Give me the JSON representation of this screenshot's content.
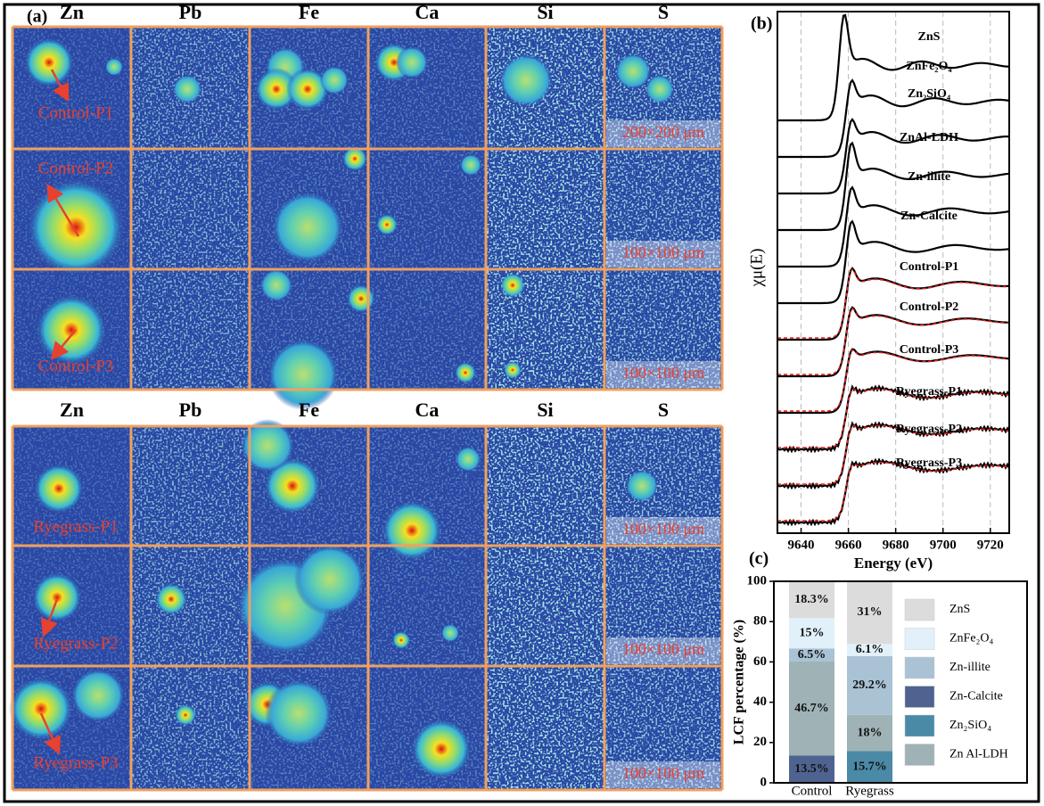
{
  "panel_a": {
    "label": "(a)",
    "groups": [
      {
        "elements": [
          "Zn",
          "Pb",
          "Fe",
          "Ca",
          "Si",
          "S"
        ],
        "rows": [
          {
            "sample": "Control-P1",
            "scale": "200×200 μm"
          },
          {
            "sample": "Control-P2",
            "scale": "100×100 μm"
          },
          {
            "sample": "Control-P3",
            "scale": "100×100 μm"
          }
        ]
      },
      {
        "elements": [
          "Zn",
          "Pb",
          "Fe",
          "Ca",
          "Si",
          "S"
        ],
        "rows": [
          {
            "sample": "Ryegrass-P1",
            "scale": "100×100 μm"
          },
          {
            "sample": "Ryegrass-P2",
            "scale": "100×100 μm"
          },
          {
            "sample": "Ryegrass-P3",
            "scale": "100×100 μm"
          }
        ]
      }
    ]
  },
  "panel_b": {
    "label": "(b)",
    "xlabel": "Energy (eV)",
    "ylabel": "χμ(E)",
    "xlim": [
      9630,
      9728
    ],
    "xticks": [
      9640,
      9660,
      9680,
      9700,
      9720
    ],
    "spectra": [
      "ZnS",
      "ZnFe₂O₄",
      "Zn₂SiO₄",
      "ZnAl-LDH",
      "Zn-illite",
      "Zn-Calcite",
      "Control-P1",
      "Control-P2",
      "Control-P3",
      "Ryegrass-P1",
      "Ryegrass-P2",
      "Ryegrass-P3"
    ]
  },
  "chart_data": {
    "type": "stacked_bar",
    "label": "(c)",
    "ylabel": "LCF percentage (%)",
    "categories": [
      "Control",
      "Ryegrass"
    ],
    "ylim": [
      0,
      100
    ],
    "yticks": [
      0,
      20,
      40,
      60,
      80,
      100
    ],
    "series": [
      {
        "name": "ZnS",
        "color": "#dcdcdc",
        "values": [
          18.3,
          31
        ],
        "value_labels": [
          "18.3%",
          "31%"
        ]
      },
      {
        "name": "ZnFe₂O₄",
        "color": "#e2f0f9",
        "values": [
          15,
          6.1
        ],
        "value_labels": [
          "15%",
          "6.1%"
        ]
      },
      {
        "name": "Zn-illite",
        "color": "#a9c2d4",
        "values": [
          6.5,
          29.2
        ],
        "value_labels": [
          "6.5%",
          "29.2%"
        ]
      },
      {
        "name": "Zn-Calcite",
        "color": "#4f6390",
        "values": [
          13.5,
          null
        ],
        "value_labels": [
          "13.5%",
          null
        ]
      },
      {
        "name": "Zn₂SiO₄",
        "color": "#4a8aa6",
        "values": [
          null,
          15.7
        ],
        "value_labels": [
          null,
          "15.7%"
        ]
      },
      {
        "name": "Zn Al-LDH",
        "color": "#9fb2b5",
        "values": [
          46.7,
          18
        ],
        "value_labels": [
          "46.7%",
          "18%"
        ]
      }
    ]
  }
}
